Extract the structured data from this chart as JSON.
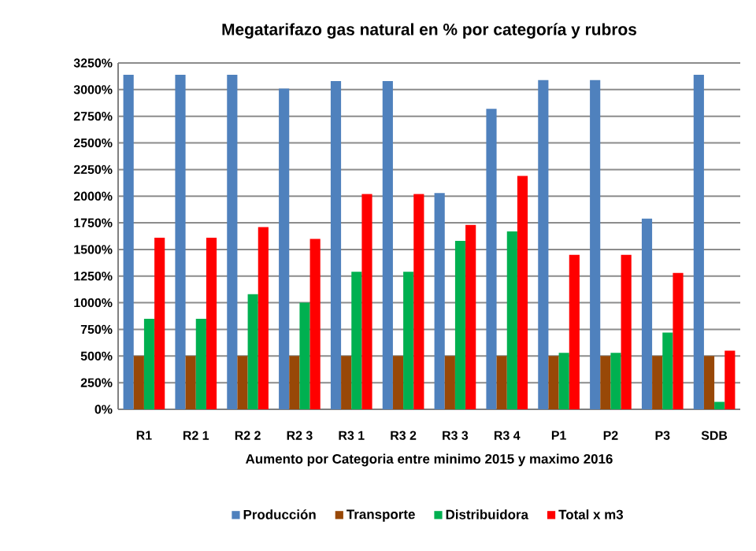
{
  "chart_data": {
    "type": "bar",
    "title": "Megatarifazo gas natural en % por categoría y rubros",
    "xlabel": "Aumento por Categoria entre minimo 2015 y maximo 2016",
    "categories": [
      "R1",
      "R2 1",
      "R2 2",
      "R2 3",
      "R3 1",
      "R3 2",
      "R3 3",
      "R3 4",
      "P1",
      "P2",
      "P3",
      "SDB"
    ],
    "series": [
      {
        "name": "Producción",
        "color": "#4f81bd",
        "values": [
          3140,
          3140,
          3140,
          3010,
          3080,
          3080,
          2030,
          2820,
          3090,
          3090,
          1790,
          3140
        ]
      },
      {
        "name": "Transporte",
        "color": "#984807",
        "values": [
          500,
          500,
          500,
          500,
          500,
          500,
          500,
          500,
          500,
          500,
          500,
          500
        ]
      },
      {
        "name": "Distribuidora",
        "color": "#00b050",
        "values": [
          850,
          850,
          1080,
          1000,
          1290,
          1290,
          1580,
          1670,
          530,
          530,
          720,
          70
        ]
      },
      {
        "name": "Total x m3",
        "color": "#ff0000",
        "values": [
          1610,
          1610,
          1710,
          1600,
          2020,
          2020,
          1730,
          2190,
          1450,
          1450,
          1280,
          550
        ]
      }
    ],
    "ylim": [
      0,
      3250
    ],
    "yticks": [
      {
        "value": 0,
        "label": "0%"
      },
      {
        "value": 250,
        "label": "250%"
      },
      {
        "value": 500,
        "label": "500%"
      },
      {
        "value": 750,
        "label": "750%"
      },
      {
        "value": 1000,
        "label": "1000%"
      },
      {
        "value": 1250,
        "label": "1250%"
      },
      {
        "value": 1500,
        "label": "1500%"
      },
      {
        "value": 1750,
        "label": "1750%"
      },
      {
        "value": 2000,
        "label": "2000%"
      },
      {
        "value": 2250,
        "label": "2250%"
      },
      {
        "value": 2500,
        "label": "2500%"
      },
      {
        "value": 2750,
        "label": "2750%"
      },
      {
        "value": 3000,
        "label": "3000%"
      },
      {
        "value": 3250,
        "label": "3250%"
      }
    ],
    "grid": "y",
    "legend": "bottom"
  }
}
